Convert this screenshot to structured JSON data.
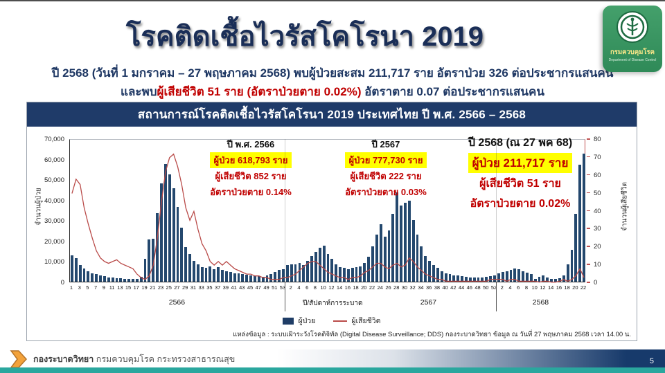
{
  "colors": {
    "navy": "#1f3864",
    "red": "#c00000",
    "bar": "#24486e",
    "line": "#b94a48",
    "panel_band": "#1f3b69",
    "highlight": "#ffff00",
    "logo_green": "#379358",
    "footer_teal": "#2aa79e"
  },
  "header": {
    "title": "โรคติดเชื้อไวรัสโคโรนา 2019",
    "subtitle1": "ปี 2568 (วันที่ 1 มกราคม – 27 พฤษภาคม 2568) พบผู้ป่วยสะสม 211,717 ราย อัตราป่วย 326 ต่อประชากรแสนคน",
    "subtitle2_prefix": "และพบ",
    "subtitle2_red": "ผู้เสียชีวิต 51 ราย (อัตราป่วยตาย 0.02%)",
    "subtitle2_suffix": " อัตราตาย 0.07 ต่อประชากรแสนคน"
  },
  "logo": {
    "org_th": "กรมควบคุมโรค",
    "org_en": "Department of Disease Control"
  },
  "chart": {
    "panel_title": "สถานการณ์โรคติดเชื้อไวรัสโคโรนา 2019 ประเทศไทย ปี พ.ศ. 2566 – 2568",
    "annotations": [
      {
        "title": "ปี พ.ศ. 2566",
        "cases": "ผู้ป่วย 618,793  ราย",
        "deaths": "ผู้เสียชีวิต 852 ราย",
        "cfr": "อัตราป่วยตาย 0.14%"
      },
      {
        "title": "ปี 2567",
        "cases": "ผู้ป่วย 777,730 ราย",
        "deaths": "ผู้เสียชีวิต 222 ราย",
        "cfr": "อัตราป่วยตาย 0.03%"
      },
      {
        "title": "ปี 2568 (ณ 27 พค 68)",
        "cases": "ผู้ป่วย 211,717 ราย",
        "deaths": "ผู้เสียชีวิต 51 ราย",
        "cfr": "อัตราป่วยตาย 0.02%"
      }
    ],
    "legend": {
      "cases": "ผู้ป่วย",
      "deaths": "ผู้เสียชีวิต"
    },
    "source": "แหล่งข้อมูล : ระบบเฝ้าระวังโรคดิจิทัล (Digital Disease Surveillance; DDS) กองระบาดวิทยา ข้อมูล ณ วันที่ 27 พฤษภาคม 2568 เวลา 14.00 น."
  },
  "chart_data": {
    "type": "bar",
    "subtype": "combo bar(cases, left axis) + line(deaths, right axis), weekly",
    "title": "สถานการณ์โรคติดเชื้อไวรัสโคโรนา 2019 ประเทศไทย ปี พ.ศ. 2566 – 2568",
    "xlabel": "ปี/สัปดาห์การระบาด",
    "ylabel_left": "จำนวนผู้ป่วย",
    "ylabel_right": "จำนวนผู้เสียชีวิต",
    "ylim_left": [
      0,
      70000
    ],
    "ylim_right": [
      0,
      80
    ],
    "yticks_left_labels": [
      "0",
      "10,000",
      "20,000",
      "30,000",
      "40,000",
      "50,000",
      "60,000",
      "70,000"
    ],
    "yticks_right_labels": [
      "0",
      "10",
      "20",
      "30",
      "40",
      "50",
      "60",
      "70",
      "80"
    ],
    "legend_position": "bottom",
    "series": [
      {
        "name": "ผู้ป่วย",
        "type": "bar",
        "axis": "left",
        "color": "#24486e"
      },
      {
        "name": "ผู้เสียชีวิต",
        "type": "line",
        "axis": "right",
        "color": "#b94a48"
      }
    ],
    "groups": [
      {
        "year": "2566",
        "x_ticks": [
          1,
          3,
          5,
          7,
          9,
          11,
          13,
          15,
          17,
          19,
          21,
          23,
          25,
          27,
          29,
          31,
          33,
          35,
          37,
          39,
          41,
          43,
          45,
          47,
          49,
          51,
          53
        ],
        "cases": [
          13000,
          11500,
          8000,
          6500,
          5200,
          4200,
          3600,
          3000,
          2600,
          2200,
          2000,
          1800,
          1600,
          1500,
          1400,
          1300,
          1500,
          2300,
          11000,
          20500,
          21000,
          33500,
          48000,
          57500,
          52500,
          45800,
          36500,
          26500,
          17000,
          13500,
          10200,
          8600,
          7200,
          6600,
          7600,
          6100,
          7000,
          5600,
          5000,
          4600,
          4200,
          4000,
          3800,
          3500,
          3200,
          3000,
          2600,
          2300,
          2900,
          3600,
          4600,
          5600,
          6200
        ],
        "deaths": [
          50,
          58,
          55,
          42,
          33,
          25,
          18,
          14,
          12,
          11,
          12,
          13,
          11,
          10,
          9,
          8,
          5,
          3,
          2,
          4,
          10,
          25,
          45,
          62,
          70,
          72,
          65,
          55,
          42,
          35,
          40,
          30,
          22,
          18,
          12,
          10,
          12,
          10,
          12,
          10,
          8,
          7,
          6,
          5,
          5,
          4,
          4,
          3,
          3,
          2,
          2,
          2,
          3
        ]
      },
      {
        "year": "2567",
        "x_ticks": [
          2,
          4,
          6,
          8,
          10,
          12,
          14,
          16,
          18,
          20,
          22,
          24,
          26,
          28,
          30,
          32,
          34,
          36,
          38,
          40,
          42,
          44,
          46,
          48,
          50,
          52
        ],
        "cases": [
          8000,
          8600,
          8600,
          9200,
          8200,
          10200,
          12600,
          14600,
          16600,
          17600,
          13600,
          11000,
          8600,
          7200,
          6600,
          6100,
          6600,
          7100,
          7600,
          9100,
          12100,
          17100,
          23100,
          28100,
          22100,
          25100,
          33100,
          43600,
          37100,
          38600,
          39600,
          30100,
          23100,
          17100,
          12600,
          10100,
          8100,
          6600,
          5100,
          4100,
          3600,
          3100,
          2900,
          2600,
          2300,
          2100,
          2000,
          1900,
          2100,
          2300,
          2600,
          3100
        ],
        "deaths": [
          3,
          4,
          5,
          7,
          9,
          11,
          12,
          12,
          10,
          8,
          6,
          5,
          4,
          3,
          3,
          2,
          3,
          3,
          4,
          6,
          7,
          9,
          11,
          11,
          9,
          8,
          10,
          11,
          9,
          10,
          14,
          12,
          9,
          7,
          5,
          4,
          3,
          2,
          2,
          1,
          1,
          1,
          1,
          1,
          1,
          1,
          1,
          1,
          1,
          1,
          2,
          2
        ]
      },
      {
        "year": "2568",
        "x_ticks": [
          2,
          4,
          6,
          8,
          10,
          12,
          14,
          16,
          18,
          20,
          22
        ],
        "cases": [
          4000,
          4800,
          5200,
          5800,
          6500,
          6000,
          5200,
          4500,
          3800,
          1500,
          2500,
          3200,
          2200,
          1500,
          1300,
          1800,
          3000,
          8500,
          15500,
          33000,
          57000,
          62500
        ],
        "deaths": [
          2,
          2,
          1,
          2,
          2,
          1,
          1,
          1,
          1,
          1,
          0.5,
          1,
          1,
          0.5,
          0.5,
          1,
          2,
          1,
          2,
          4,
          8,
          3
        ]
      }
    ]
  },
  "footer": {
    "org_bold": "กองระบาดวิทยา",
    "org_rest": "กรมควบคุมโรค กระทรวงสาธารณสุข",
    "page_number": "5"
  }
}
